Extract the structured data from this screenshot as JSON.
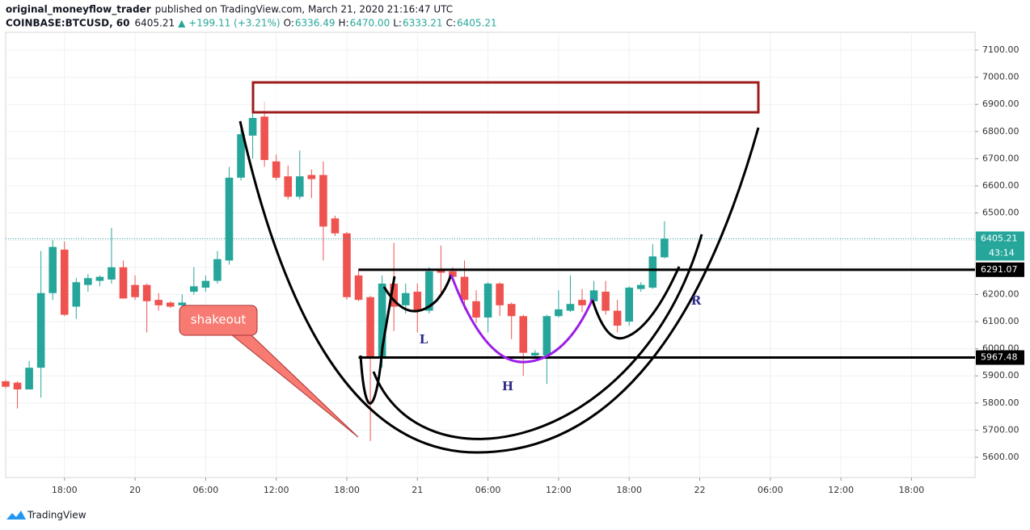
{
  "header": {
    "author": "original_moneyflow_trader",
    "published": "published on TradingView.com, March 21, 2020 21:16:47 UTC",
    "symbol": "COINBASE:BTCUSD, 60",
    "last": "6405.21",
    "change": "▲ +199.11 (+3.21%)",
    "ohlc": [
      {
        "label": "O:",
        "value": "6336.49"
      },
      {
        "label": "H:",
        "value": "6470.00"
      },
      {
        "label": "L:",
        "value": "6333.21"
      },
      {
        "label": "C:",
        "value": "6405.21"
      }
    ]
  },
  "chart_data": {
    "type": "candlestick",
    "up_color": "#26a69a",
    "down_color": "#ef5350",
    "open": [
      5880,
      5875,
      5850,
      5930,
      6205,
      6365,
      6155,
      6235,
      6250,
      6255,
      6300,
      6235,
      6235,
      6180,
      6170,
      6160,
      6210,
      6225,
      6250,
      6325,
      6630,
      6785,
      6855,
      6690,
      6635,
      6560,
      6640,
      6640,
      6480,
      6425,
      6270,
      6190,
      5970,
      6240,
      6160,
      6210,
      6140,
      6290,
      6285,
      6265,
      6175,
      6115,
      6240,
      6165,
      6120,
      5975,
      5975,
      6120,
      6140,
      6180,
      6175,
      6210,
      6140,
      6100,
      6220,
      6225,
      6336.49
    ],
    "high": [
      5885,
      5880,
      5955,
      6360,
      6400,
      6395,
      6260,
      6275,
      6270,
      6445,
      6325,
      6270,
      6240,
      6205,
      6175,
      6200,
      6300,
      6270,
      6360,
      6670,
      6810,
      6870,
      6910,
      6715,
      6675,
      6730,
      6660,
      6690,
      6490,
      6430,
      6295,
      6195,
      6270,
      6390,
      6240,
      6240,
      6300,
      6380,
      6300,
      6325,
      6215,
      6245,
      6245,
      6170,
      6125,
      5995,
      6125,
      6215,
      6270,
      6220,
      6250,
      6250,
      6180,
      6230,
      6245,
      6385,
      6470
    ],
    "low": [
      5855,
      5780,
      5850,
      5820,
      6180,
      6120,
      6110,
      6210,
      6230,
      6240,
      6185,
      6180,
      6060,
      6140,
      6150,
      6120,
      6200,
      6210,
      6240,
      6310,
      6620,
      6700,
      6670,
      6620,
      6550,
      6550,
      6555,
      6325,
      6415,
      6180,
      6175,
      5660,
      5930,
      6065,
      6130,
      6060,
      6130,
      6205,
      6250,
      6145,
      6095,
      6060,
      6120,
      6035,
      5900,
      5965,
      5870,
      6115,
      6135,
      6135,
      6160,
      6125,
      6060,
      6085,
      6210,
      6220,
      6333.21
    ],
    "close": [
      5860,
      5850,
      5930,
      6205,
      6375,
      6125,
      6245,
      6260,
      6265,
      6300,
      6185,
      6190,
      6175,
      6160,
      6155,
      6170,
      6230,
      6250,
      6330,
      6630,
      6790,
      6850,
      6695,
      6630,
      6560,
      6635,
      6625,
      6450,
      6425,
      6190,
      6180,
      5970,
      6240,
      6155,
      6205,
      6140,
      6285,
      6280,
      6265,
      6180,
      6115,
      6240,
      6160,
      6120,
      5985,
      5985,
      6120,
      6145,
      6165,
      6160,
      6215,
      6140,
      6085,
      6225,
      6235,
      6340,
      6405.21
    ],
    "ylim": [
      5525.7,
      7165.5
    ],
    "yticks": [
      {
        "value": 5600,
        "label": "5600.00"
      },
      {
        "value": 5700,
        "label": "5700.00"
      },
      {
        "value": 5800,
        "label": "5800.00"
      },
      {
        "value": 5900,
        "label": "5900.00"
      },
      {
        "value": 6000,
        "label": "6000.00"
      },
      {
        "value": 6100,
        "label": "6100.00"
      },
      {
        "value": 6200,
        "label": "6200.00"
      },
      {
        "value": 6300,
        "label": "6300.00"
      },
      {
        "value": 6400,
        "label": "6400.00"
      },
      {
        "value": 6500,
        "label": "6500.00"
      },
      {
        "value": 6600,
        "label": "6600.00"
      },
      {
        "value": 6700,
        "label": "6700.00"
      },
      {
        "value": 6800,
        "label": "6800.00"
      },
      {
        "value": 6900,
        "label": "6900.00"
      },
      {
        "value": 7000,
        "label": "7000.00"
      },
      {
        "value": 7100,
        "label": "7100.00"
      }
    ],
    "xlim": [
      0,
      82.4
    ],
    "xticks": [
      {
        "value": 5,
        "label": "18:00"
      },
      {
        "value": 11,
        "label": "20"
      },
      {
        "value": 17,
        "label": "06:00"
      },
      {
        "value": 23,
        "label": "12:00"
      },
      {
        "value": 29,
        "label": "18:00"
      },
      {
        "value": 35,
        "label": "21"
      },
      {
        "value": 41,
        "label": "06:00"
      },
      {
        "value": 47,
        "label": "12:00"
      },
      {
        "value": 53,
        "label": "18:00"
      },
      {
        "value": 59,
        "label": "22"
      },
      {
        "value": 65,
        "label": "06:00"
      },
      {
        "value": 71,
        "label": "12:00"
      },
      {
        "value": 77,
        "label": "18:00"
      }
    ],
    "grid": true,
    "last_price": 6405.21,
    "countdown": "43:14",
    "levels": [
      6291.07,
      5967.48
    ],
    "annotations": {
      "shakeout": "shakeout",
      "L": "L",
      "H": "H",
      "R": "R"
    }
  },
  "footer": {
    "brand": "TradingView"
  }
}
